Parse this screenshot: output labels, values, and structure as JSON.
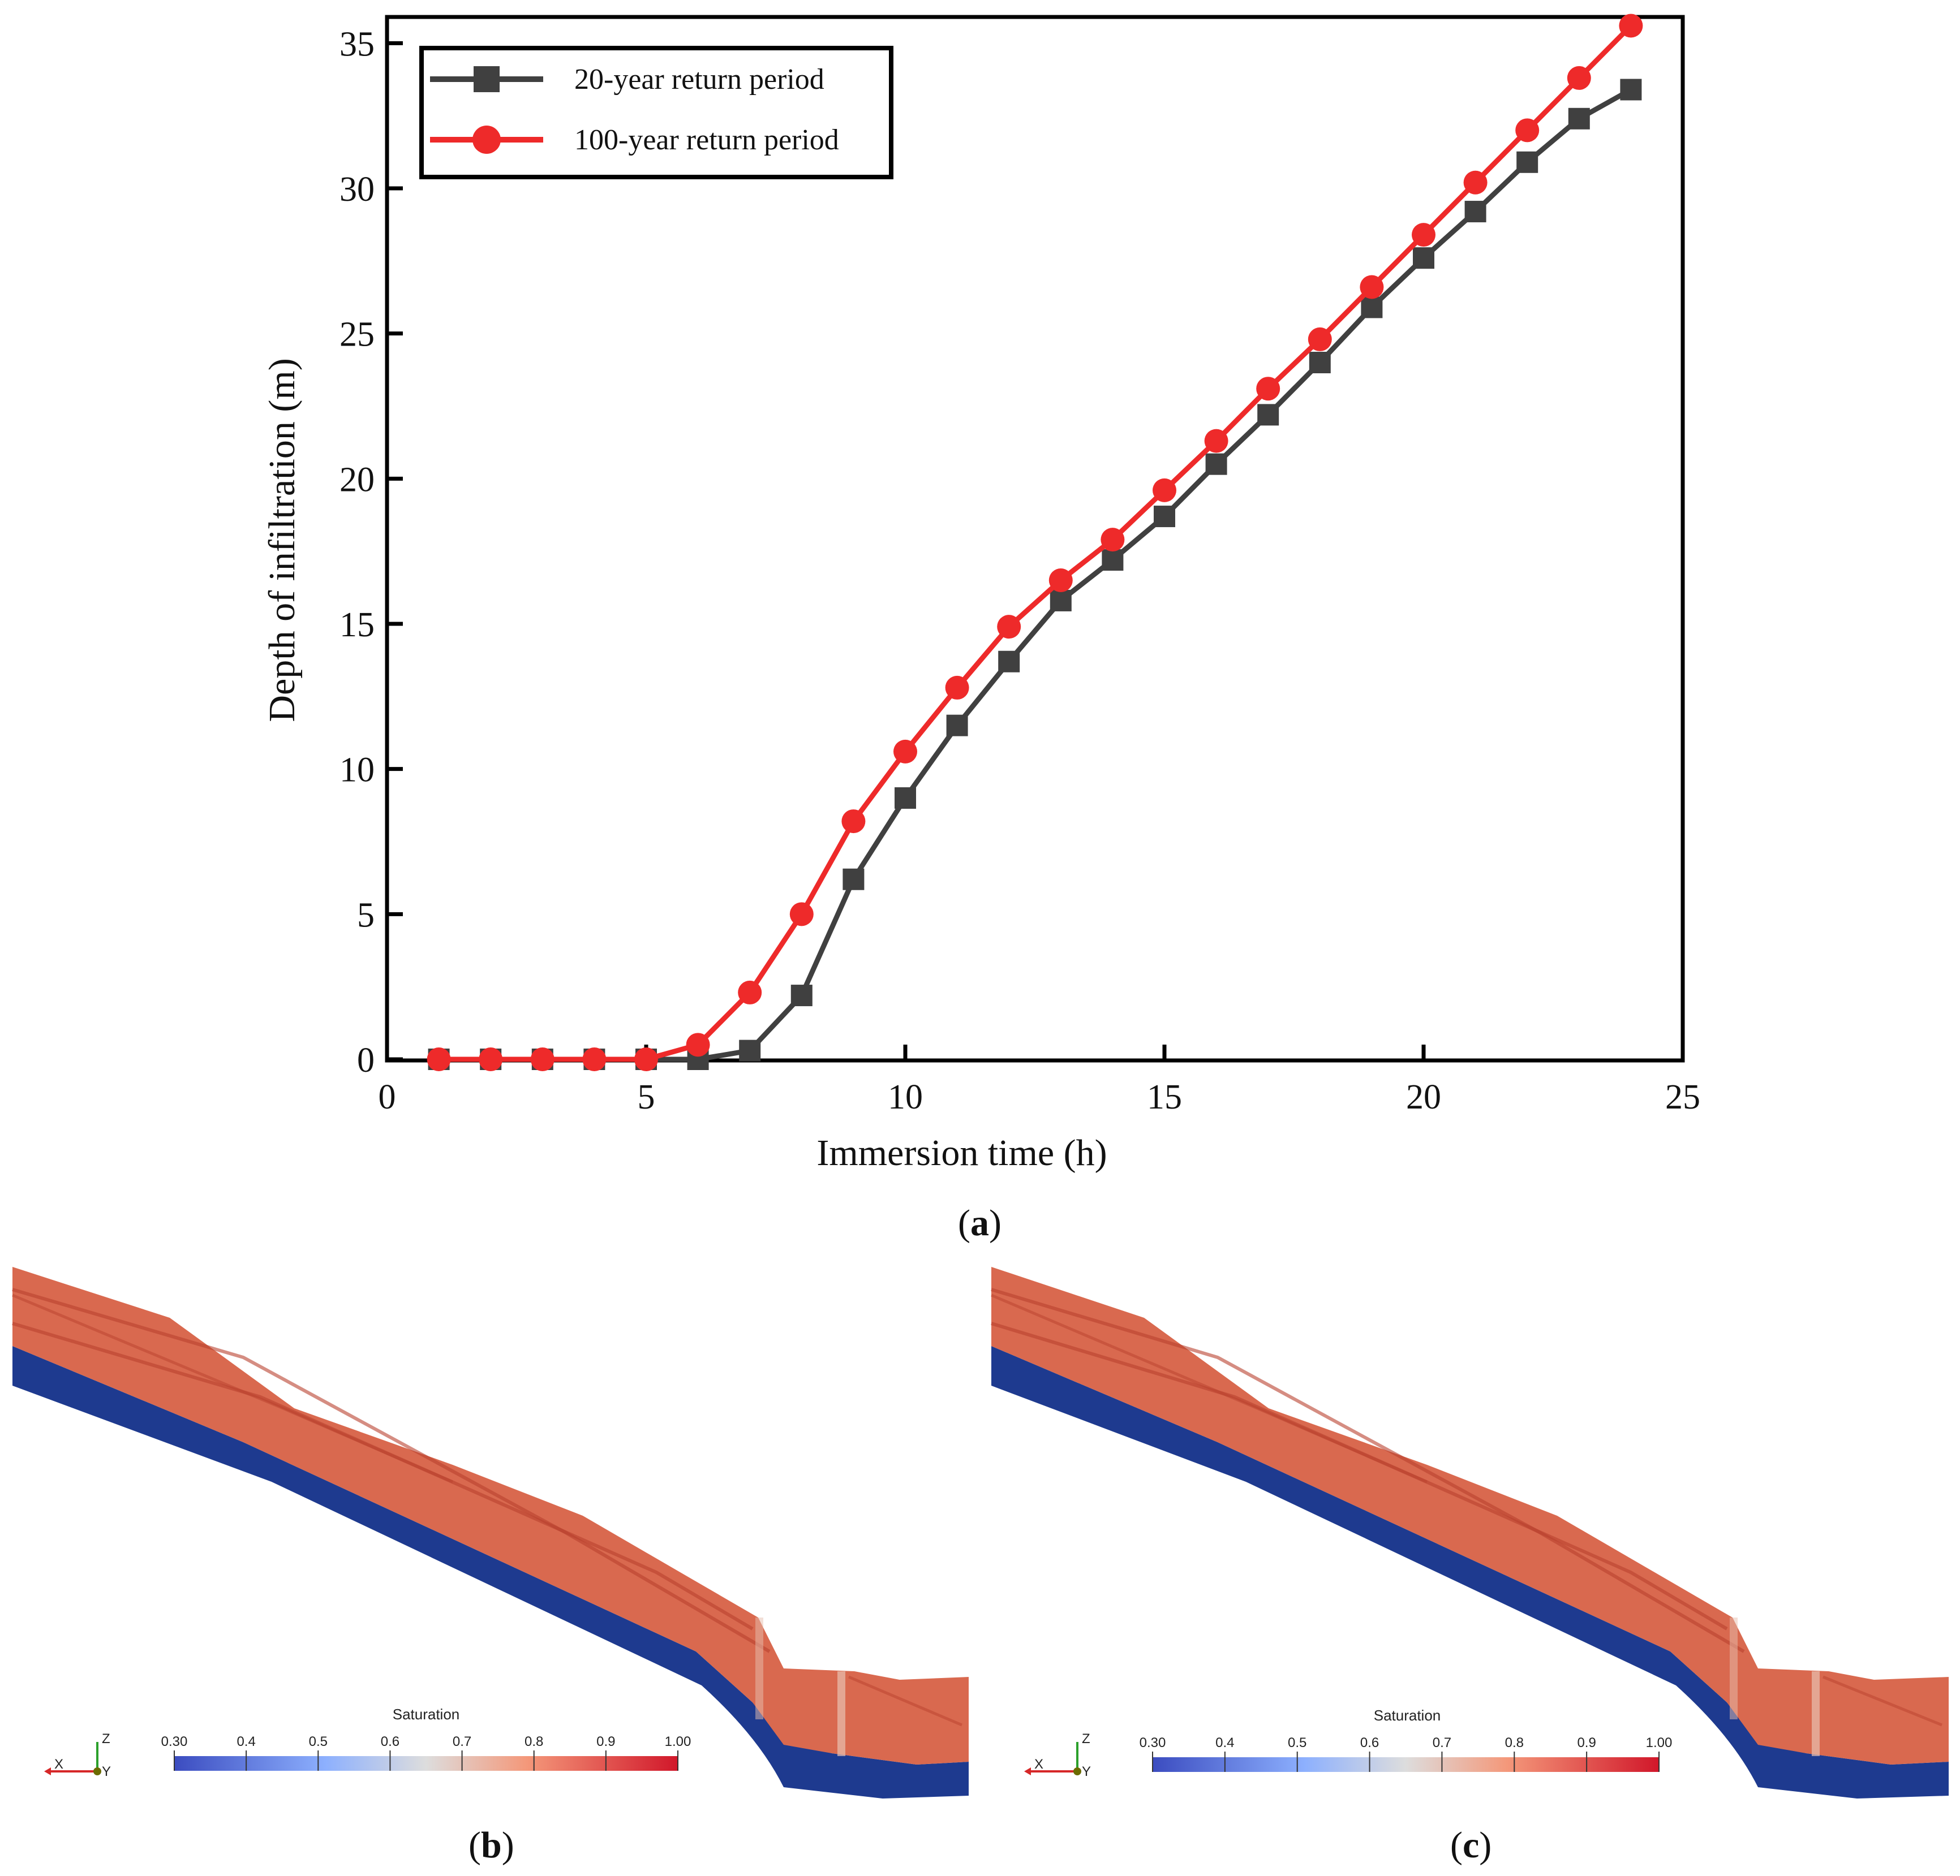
{
  "chart_data": {
    "type": "line",
    "xlabel": "Immersion time (h)",
    "ylabel": "Depth of infiltration (m)",
    "xlim": [
      0,
      25
    ],
    "ylim": [
      0,
      36
    ],
    "xticks": [
      0,
      5,
      10,
      15,
      20,
      25
    ],
    "yticks": [
      0,
      5,
      10,
      15,
      20,
      25,
      30,
      35
    ],
    "legend_position": "top-left",
    "series": [
      {
        "name": "20-year return period",
        "color": "#404040",
        "marker": "square",
        "x": [
          1,
          2,
          3,
          4,
          5,
          6,
          7,
          8,
          9,
          10,
          11,
          12,
          13,
          14,
          15,
          16,
          17,
          18,
          19,
          20,
          21,
          22,
          23,
          24
        ],
        "y": [
          0,
          0,
          0,
          0,
          0,
          0,
          0.3,
          2.2,
          6.2,
          9.0,
          11.5,
          13.7,
          15.8,
          17.2,
          18.7,
          20.5,
          22.2,
          24.0,
          25.9,
          27.6,
          29.2,
          30.9,
          32.4,
          33.4
        ]
      },
      {
        "name": "100-year return period",
        "color": "#ee2a2a",
        "marker": "circle",
        "x": [
          1,
          2,
          3,
          4,
          5,
          6,
          7,
          8,
          9,
          10,
          11,
          12,
          13,
          14,
          15,
          16,
          17,
          18,
          19,
          20,
          21,
          22,
          23,
          24
        ],
        "y": [
          0,
          0,
          0,
          0,
          0,
          0.5,
          2.3,
          5.0,
          8.2,
          10.6,
          12.8,
          14.9,
          16.5,
          17.9,
          19.6,
          21.3,
          23.1,
          24.8,
          26.6,
          28.4,
          30.2,
          32.0,
          33.8,
          35.6
        ]
      }
    ]
  },
  "panel_labels": {
    "a": "a",
    "b": "b",
    "c": "c"
  },
  "colorbar": {
    "title": "Saturation",
    "ticks": [
      "0.30",
      "0.4",
      "0.5",
      "0.6",
      "0.7",
      "0.8",
      "0.9",
      "1.00"
    ]
  },
  "axes_triad": {
    "x": "X",
    "y": "Y",
    "z": "Z"
  },
  "colors": {
    "low": "#3b4cc0",
    "mid": "#dddddd",
    "high": "#d1493f",
    "soil": "#d9694f",
    "bedrock": "#1e3a8f"
  }
}
